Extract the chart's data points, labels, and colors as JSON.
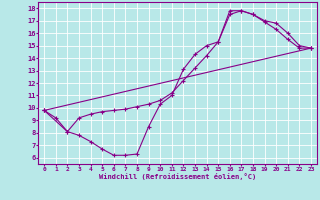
{
  "background_color": "#b8e8e8",
  "line_color": "#880088",
  "grid_color": "#ffffff",
  "xlabel": "Windchill (Refroidissement éolien,°C)",
  "xlim": [
    -0.5,
    23.5
  ],
  "ylim": [
    5.5,
    18.5
  ],
  "yticks": [
    6,
    7,
    8,
    9,
    10,
    11,
    12,
    13,
    14,
    15,
    16,
    17,
    18
  ],
  "xticks": [
    0,
    1,
    2,
    3,
    4,
    5,
    6,
    7,
    8,
    9,
    10,
    11,
    12,
    13,
    14,
    15,
    16,
    17,
    18,
    19,
    20,
    21,
    22,
    23
  ],
  "line1_x": [
    0,
    1,
    2,
    3,
    4,
    5,
    6,
    7,
    8,
    9,
    10,
    11,
    12,
    13,
    14,
    15,
    16,
    17,
    18,
    19,
    20,
    21,
    22,
    23
  ],
  "line1_y": [
    9.8,
    9.2,
    8.1,
    7.8,
    7.3,
    6.7,
    6.2,
    6.2,
    6.3,
    8.5,
    10.3,
    11.0,
    13.1,
    14.3,
    15.0,
    15.3,
    17.8,
    17.8,
    17.5,
    16.9,
    16.3,
    15.5,
    14.8,
    14.8
  ],
  "line2_x": [
    0,
    2,
    3,
    4,
    5,
    6,
    7,
    8,
    9,
    10,
    11,
    12,
    13,
    14,
    15,
    16,
    17,
    18,
    19,
    20,
    21,
    22,
    23
  ],
  "line2_y": [
    9.8,
    8.1,
    9.2,
    9.5,
    9.7,
    9.8,
    9.9,
    10.1,
    10.3,
    10.6,
    11.2,
    12.2,
    13.2,
    14.2,
    15.3,
    17.5,
    17.8,
    17.5,
    17.0,
    16.8,
    16.0,
    15.0,
    14.8
  ],
  "line3_x": [
    0,
    23
  ],
  "line3_y": [
    9.8,
    14.8
  ]
}
